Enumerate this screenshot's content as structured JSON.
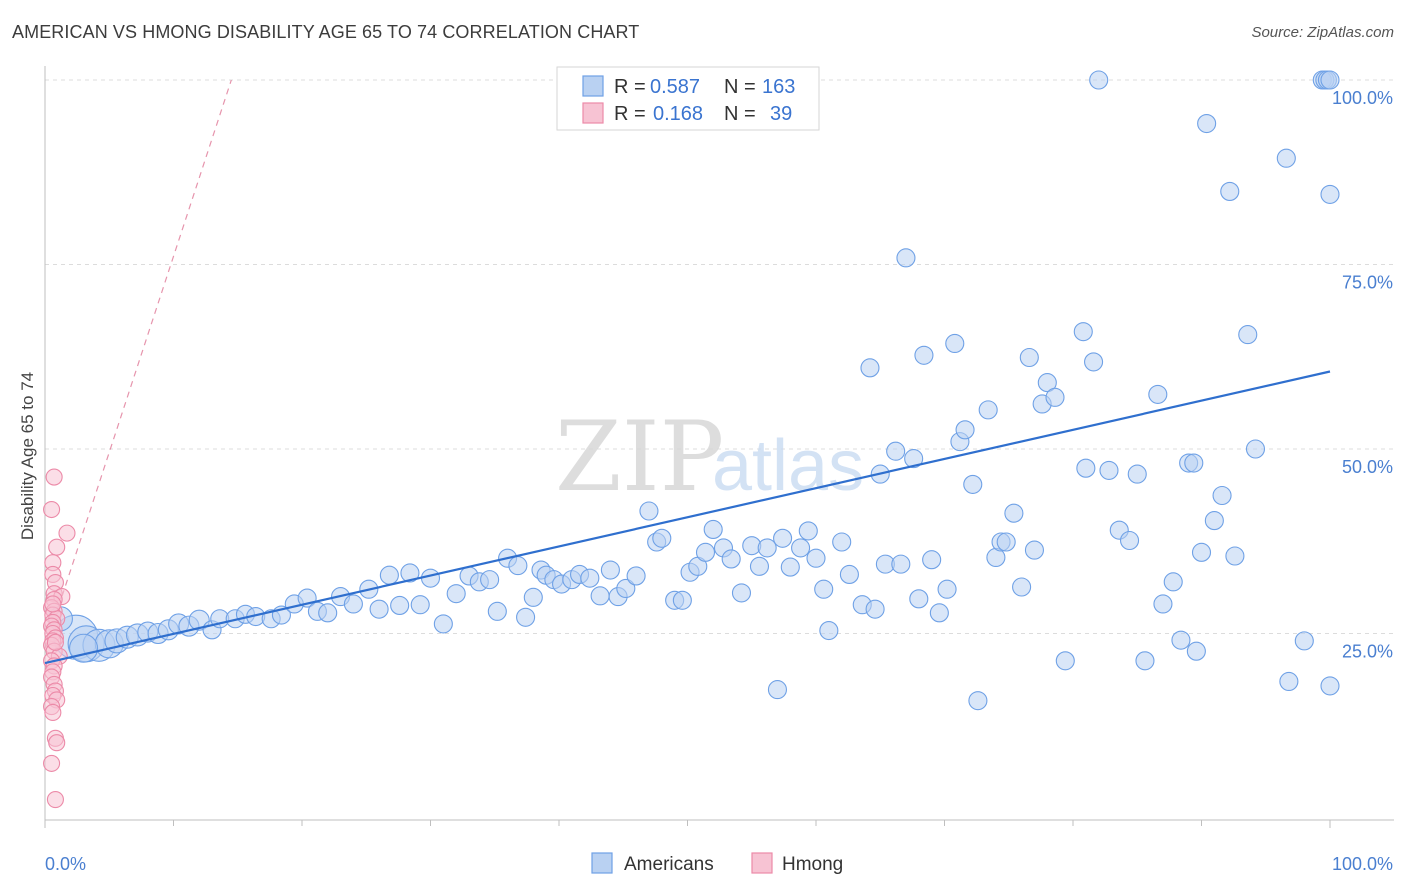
{
  "title": "AMERICAN VS HMONG DISABILITY AGE 65 TO 74 CORRELATION CHART",
  "source": "Source: ZipAtlas.com",
  "watermark": {
    "zip": "ZIP",
    "atlas": "atlas"
  },
  "colors": {
    "americans": "#6fa1e6",
    "americans_fill": "#b9d1f2",
    "americans_line": "#2f6fce",
    "hmong": "#ec8aa8",
    "hmong_fill": "#f7c3d3",
    "hmong_line": "#e07a98",
    "tick_label": "#4a7fd0"
  },
  "legend": {
    "rows": [
      {
        "r_label": "R =",
        "r_value": "0.587",
        "n_label": "N =",
        "n_value": "163",
        "series": "americans"
      },
      {
        "r_label": "R =",
        "r_value": "0.168",
        "n_label": "N =",
        "n_value": "39",
        "series": "hmong"
      }
    ]
  },
  "bottom_legend": [
    {
      "label": "Americans",
      "series": "americans"
    },
    {
      "label": "Hmong",
      "series": "hmong"
    }
  ],
  "chart_data": {
    "type": "scatter",
    "title": "AMERICAN VS HMONG DISABILITY AGE 65 TO 74 CORRELATION CHART",
    "xlabel": "",
    "ylabel": "Disability Age 65 to 74",
    "xlim": [
      0,
      100
    ],
    "ylim": [
      0,
      102
    ],
    "x_tick_labels": [
      "0.0%",
      "100.0%"
    ],
    "y_tick_labels": [
      "25.0%",
      "50.0%",
      "75.0%",
      "100.0%"
    ],
    "y_tick_values": [
      25,
      50,
      75,
      100
    ],
    "grid": "horizontal dashed",
    "legend_position": "top-center",
    "series": [
      {
        "name": "Americans",
        "r": 0.587,
        "n": 163,
        "trend": {
          "x": [
            0,
            100
          ],
          "y": [
            21.0,
            60.5
          ]
        },
        "points": [
          [
            2.4,
            24.5,
            22
          ],
          [
            3.2,
            23.6,
            18
          ],
          [
            4.2,
            23.4,
            16
          ],
          [
            5.0,
            23.6,
            14
          ],
          [
            3.0,
            23.0,
            14
          ],
          [
            1.2,
            27.0,
            12
          ],
          [
            5.6,
            24.0,
            12
          ],
          [
            6.4,
            24.5,
            11
          ],
          [
            7.2,
            24.8,
            11
          ],
          [
            8.0,
            25.2,
            10
          ],
          [
            8.8,
            25.0,
            10
          ],
          [
            9.6,
            25.5,
            10
          ],
          [
            10.4,
            26.3,
            10
          ],
          [
            11.2,
            26.0,
            10
          ],
          [
            12.0,
            26.8,
            10
          ],
          [
            13.0,
            25.5,
            9
          ],
          [
            13.6,
            27.0,
            9
          ],
          [
            14.8,
            27.0,
            9
          ],
          [
            15.6,
            27.6,
            9
          ],
          [
            16.4,
            27.3,
            9
          ],
          [
            17.6,
            27.0,
            9
          ],
          [
            18.4,
            27.5,
            9
          ],
          [
            19.4,
            29.0,
            9
          ],
          [
            20.4,
            29.8,
            9
          ],
          [
            21.2,
            28.0,
            9
          ],
          [
            22.0,
            27.8,
            9
          ],
          [
            23.0,
            30.0,
            9
          ],
          [
            24.0,
            29.0,
            9
          ],
          [
            25.2,
            31.0,
            9
          ],
          [
            26.0,
            28.3,
            9
          ],
          [
            26.8,
            32.9,
            9
          ],
          [
            27.6,
            28.8,
            9
          ],
          [
            28.4,
            33.2,
            9
          ],
          [
            29.2,
            28.9,
            9
          ],
          [
            30.0,
            32.5,
            9
          ],
          [
            31.0,
            26.3,
            9
          ],
          [
            32.0,
            30.4,
            9
          ],
          [
            33.0,
            32.8,
            9
          ],
          [
            33.8,
            32.0,
            9
          ],
          [
            34.6,
            32.3,
            9
          ],
          [
            35.2,
            28.0,
            9
          ],
          [
            36.0,
            35.2,
            9
          ],
          [
            36.8,
            34.2,
            9
          ],
          [
            37.4,
            27.2,
            9
          ],
          [
            38.0,
            29.9,
            9
          ],
          [
            38.6,
            33.6,
            9
          ],
          [
            39.0,
            32.9,
            9
          ],
          [
            39.6,
            32.3,
            9
          ],
          [
            40.2,
            31.7,
            9
          ],
          [
            41.0,
            32.3,
            9
          ],
          [
            41.6,
            33.0,
            9
          ],
          [
            42.4,
            32.5,
            9
          ],
          [
            43.2,
            30.1,
            9
          ],
          [
            44.0,
            33.6,
            9
          ],
          [
            44.6,
            30.0,
            9
          ],
          [
            45.2,
            31.1,
            9
          ],
          [
            46.0,
            32.8,
            9
          ],
          [
            47.0,
            41.6,
            9
          ],
          [
            47.6,
            37.4,
            9
          ],
          [
            48.0,
            37.9,
            9
          ],
          [
            49.0,
            29.5,
            9
          ],
          [
            49.6,
            29.5,
            9
          ],
          [
            50.2,
            33.3,
            9
          ],
          [
            50.8,
            34.1,
            9
          ],
          [
            51.4,
            36.0,
            9
          ],
          [
            52.0,
            39.1,
            9
          ],
          [
            52.8,
            36.6,
            9
          ],
          [
            53.4,
            35.1,
            9
          ],
          [
            54.2,
            30.5,
            9
          ],
          [
            55.0,
            36.9,
            9
          ],
          [
            55.6,
            34.1,
            9
          ],
          [
            56.2,
            36.6,
            9
          ],
          [
            57.0,
            17.4,
            9
          ],
          [
            57.4,
            37.9,
            9
          ],
          [
            58.0,
            34.0,
            9
          ],
          [
            58.8,
            36.6,
            9
          ],
          [
            59.4,
            38.9,
            9
          ],
          [
            60.0,
            35.2,
            9
          ],
          [
            60.6,
            31.0,
            9
          ],
          [
            61.0,
            25.4,
            9
          ],
          [
            62.0,
            37.4,
            9
          ],
          [
            62.6,
            33.0,
            9
          ],
          [
            63.6,
            28.9,
            9
          ],
          [
            64.2,
            61.0,
            9
          ],
          [
            64.6,
            28.3,
            9
          ],
          [
            65.0,
            46.6,
            9
          ],
          [
            65.4,
            34.4,
            9
          ],
          [
            66.2,
            49.7,
            9
          ],
          [
            66.6,
            34.4,
            9
          ],
          [
            67.0,
            75.9,
            9
          ],
          [
            67.6,
            48.7,
            9
          ],
          [
            68.0,
            29.7,
            9
          ],
          [
            68.4,
            62.7,
            9
          ],
          [
            69.0,
            35.0,
            9
          ],
          [
            69.6,
            27.8,
            9
          ],
          [
            70.2,
            31.0,
            9
          ],
          [
            70.8,
            64.3,
            9
          ],
          [
            71.2,
            51.0,
            9
          ],
          [
            71.6,
            52.6,
            9
          ],
          [
            72.2,
            45.2,
            9
          ],
          [
            72.6,
            15.9,
            9
          ],
          [
            73.4,
            55.3,
            9
          ],
          [
            74.0,
            35.3,
            9
          ],
          [
            74.4,
            37.4,
            9
          ],
          [
            74.8,
            37.4,
            9
          ],
          [
            75.4,
            41.3,
            9
          ],
          [
            76.0,
            31.3,
            9
          ],
          [
            76.6,
            62.4,
            9
          ],
          [
            77.0,
            36.3,
            9
          ],
          [
            77.6,
            56.1,
            9
          ],
          [
            78.0,
            59.0,
            9
          ],
          [
            78.6,
            57.0,
            9
          ],
          [
            79.4,
            21.3,
            9
          ],
          [
            80.8,
            65.9,
            9
          ],
          [
            81.0,
            47.4,
            9
          ],
          [
            81.6,
            61.8,
            9
          ],
          [
            82.0,
            100.0,
            9
          ],
          [
            82.8,
            47.1,
            9
          ],
          [
            83.6,
            39.0,
            9
          ],
          [
            84.4,
            37.6,
            9
          ],
          [
            85.0,
            46.6,
            9
          ],
          [
            85.6,
            21.3,
            9
          ],
          [
            86.6,
            57.4,
            9
          ],
          [
            87.0,
            29.0,
            9
          ],
          [
            87.8,
            32.0,
            9
          ],
          [
            88.4,
            24.1,
            9
          ],
          [
            89.0,
            48.1,
            9
          ],
          [
            89.4,
            48.1,
            9
          ],
          [
            89.6,
            22.6,
            9
          ],
          [
            90.0,
            36.0,
            9
          ],
          [
            90.4,
            94.1,
            9
          ],
          [
            91.0,
            40.3,
            9
          ],
          [
            91.6,
            43.7,
            9
          ],
          [
            92.2,
            84.9,
            9
          ],
          [
            92.6,
            35.5,
            9
          ],
          [
            93.6,
            65.5,
            9
          ],
          [
            94.2,
            50.0,
            9
          ],
          [
            96.6,
            89.4,
            9
          ],
          [
            96.8,
            18.5,
            9
          ],
          [
            98.0,
            24.0,
            9
          ],
          [
            99.4,
            100.0,
            9
          ],
          [
            99.6,
            100.0,
            9
          ],
          [
            99.8,
            100.0,
            9
          ],
          [
            100.4,
            17.9,
            9
          ],
          [
            100.6,
            84.5,
            9
          ],
          [
            100.0,
            100.0,
            9
          ]
        ]
      },
      {
        "name": "Hmong",
        "r": 0.168,
        "n": 39,
        "trend": {
          "x": [
            0,
            14.5
          ],
          "y": [
            23.0,
            100.0
          ]
        },
        "points": [
          [
            0.4,
            46.2,
            8
          ],
          [
            0.2,
            41.8,
            8
          ],
          [
            1.4,
            38.6,
            8
          ],
          [
            0.6,
            36.7,
            8
          ],
          [
            0.3,
            34.6,
            8
          ],
          [
            0.3,
            33.0,
            8
          ],
          [
            0.5,
            31.9,
            8
          ],
          [
            0.4,
            30.4,
            8
          ],
          [
            1.0,
            30.0,
            8
          ],
          [
            0.4,
            29.6,
            8
          ],
          [
            0.2,
            28.5,
            8
          ],
          [
            0.4,
            28.0,
            8
          ],
          [
            0.3,
            27.5,
            8
          ],
          [
            0.6,
            27.0,
            8
          ],
          [
            0.3,
            26.5,
            8
          ],
          [
            0.2,
            26.0,
            8
          ],
          [
            0.4,
            25.5,
            8
          ],
          [
            0.3,
            25.0,
            8
          ],
          [
            0.5,
            24.4,
            8
          ],
          [
            0.3,
            24.0,
            8
          ],
          [
            0.2,
            23.4,
            8
          ],
          [
            0.4,
            22.6,
            8
          ],
          [
            0.8,
            21.9,
            8
          ],
          [
            0.2,
            21.3,
            8
          ],
          [
            0.4,
            20.6,
            8
          ],
          [
            0.3,
            19.8,
            8
          ],
          [
            0.2,
            19.1,
            8
          ],
          [
            0.4,
            18.1,
            8
          ],
          [
            0.5,
            17.2,
            8
          ],
          [
            0.3,
            16.6,
            8
          ],
          [
            0.6,
            16.0,
            8
          ],
          [
            0.2,
            15.1,
            8
          ],
          [
            0.3,
            14.3,
            8
          ],
          [
            0.5,
            10.8,
            8
          ],
          [
            0.6,
            10.2,
            8
          ],
          [
            0.2,
            7.4,
            8
          ],
          [
            0.5,
            2.5,
            8
          ],
          [
            0.3,
            29.0,
            8
          ],
          [
            0.5,
            23.8,
            8
          ]
        ]
      }
    ]
  }
}
